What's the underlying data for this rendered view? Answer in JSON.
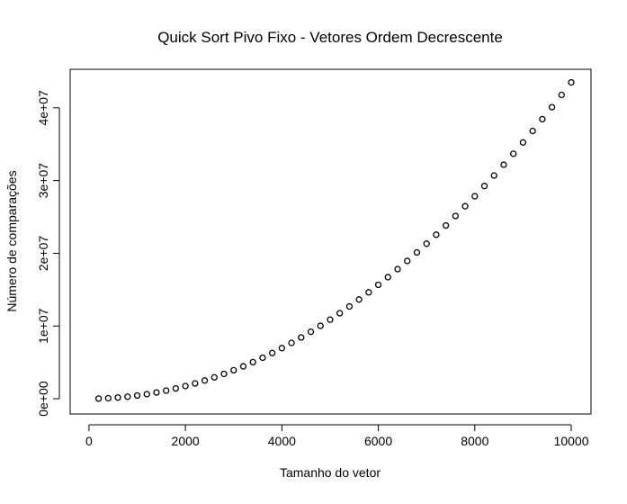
{
  "chart_data": {
    "type": "scatter",
    "title": "Quick Sort Pivo Fixo - Vetores Ordem Decrescente",
    "x_label": "Tamanho do vetor",
    "y_label": "Número de comparações",
    "color": "#000000",
    "x": [
      200,
      400,
      600,
      800,
      1000,
      1200,
      1400,
      1600,
      1800,
      2000,
      2200,
      2400,
      2600,
      2800,
      3000,
      3200,
      3400,
      3600,
      3800,
      4000,
      4200,
      4400,
      4600,
      4800,
      5000,
      5200,
      5400,
      5600,
      5800,
      6000,
      6200,
      6400,
      6600,
      6800,
      7000,
      7200,
      7400,
      7600,
      7800,
      8000,
      8200,
      8400,
      8600,
      8800,
      9000,
      9200,
      9400,
      9600,
      9800,
      10000
    ],
    "values": [
      17400,
      69600,
      156600,
      278400,
      435000,
      626400,
      852600,
      1113600,
      1409400,
      1740000,
      2105400,
      2505600,
      2940600,
      3410400,
      3915000,
      4454400,
      5028600,
      5637600,
      6281400,
      6960000,
      7673400,
      8421600,
      9204600,
      10022400,
      10875000,
      11762400,
      12684600,
      13641600,
      14633400,
      15660000,
      16721400,
      17817600,
      18948600,
      20114400,
      21315000,
      22550400,
      23820600,
      25125600,
      26465400,
      27840000,
      29249400,
      30693600,
      32172600,
      33686400,
      35235000,
      36818400,
      38436600,
      40089600,
      41777400,
      43500000
    ],
    "xlim": [
      -390,
      10410
    ],
    "ylim": [
      -2100000,
      45300000
    ],
    "xticks": [
      0,
      2000,
      4000,
      6000,
      8000,
      10000
    ],
    "yticks": [
      {
        "value": 0,
        "label": "0e+00"
      },
      {
        "value": 10000000,
        "label": "1e+07"
      },
      {
        "value": 20000000,
        "label": "2e+07"
      },
      {
        "value": 30000000,
        "label": "3e+07"
      },
      {
        "value": 40000000,
        "label": "4e+07"
      }
    ]
  }
}
